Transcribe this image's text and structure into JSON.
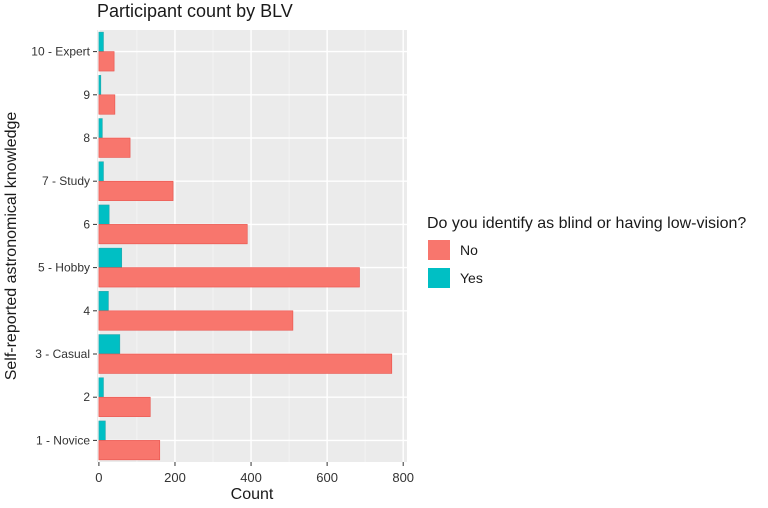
{
  "chart_data": {
    "type": "bar",
    "orientation": "horizontal",
    "title": "Participant count by BLV",
    "xlabel": "Count",
    "ylabel": "Self-reported astronomical knowledge",
    "xlim": [
      -5,
      810
    ],
    "xticks": [
      0,
      200,
      400,
      600,
      800
    ],
    "grid": true,
    "categories": [
      "1 - Novice",
      "2",
      "3 - Casual",
      "4",
      "5 - Hobby",
      "6",
      "7 - Study",
      "8",
      "9",
      "10 - Expert"
    ],
    "series": [
      {
        "name": "No",
        "color": "#F8766D",
        "values": [
          160,
          135,
          770,
          510,
          685,
          390,
          195,
          82,
          42,
          40
        ]
      },
      {
        "name": "Yes",
        "color": "#00BFC4",
        "values": [
          17,
          12,
          55,
          25,
          60,
          27,
          12,
          9,
          5,
          12
        ]
      }
    ],
    "legend": {
      "title": "Do you identify as blind or having low-vision?",
      "position": "right",
      "items": [
        {
          "label": "No",
          "color": "#F8766D"
        },
        {
          "label": "Yes",
          "color": "#00BFC4"
        }
      ]
    }
  }
}
